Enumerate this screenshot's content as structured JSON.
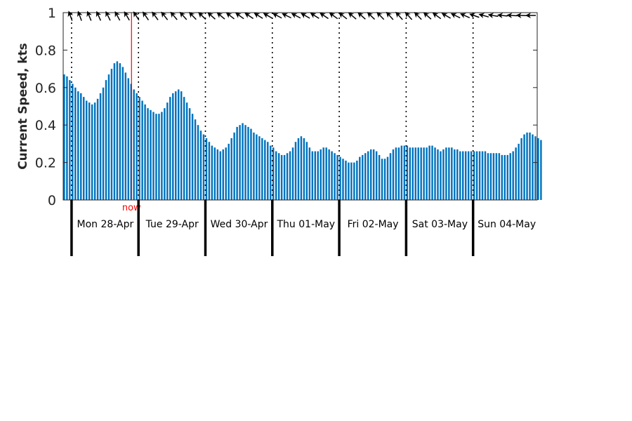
{
  "chart_data": {
    "type": "bar",
    "ylabel": "Current Speed, kts",
    "ylim": [
      0,
      1
    ],
    "yticks": [
      0,
      0.2,
      0.4,
      0.6,
      0.8,
      1
    ],
    "ytick_labels": [
      "0",
      "0.2",
      "0.4",
      "0.6",
      "0.8",
      "1"
    ],
    "x_unit": "hours since 2025-04-28 00:00",
    "xlim": [
      -3,
      167
    ],
    "day_ticks": [
      0,
      24,
      48,
      72,
      96,
      120,
      144
    ],
    "day_labels": [
      "Mon 28-Apr",
      "Tue 29-Apr",
      "Wed 30-Apr",
      "Thu 01-May",
      "Fri 02-May",
      "Sat 03-May",
      "Sun 04-May"
    ],
    "now_hour": 21.5,
    "now_label": "now",
    "bar_color": "#0072bd",
    "now_color": "#ff0000",
    "speed_kts": [
      0.67,
      0.66,
      0.64,
      0.62,
      0.6,
      0.58,
      0.57,
      0.55,
      0.53,
      0.52,
      0.51,
      0.52,
      0.54,
      0.57,
      0.6,
      0.64,
      0.67,
      0.7,
      0.73,
      0.74,
      0.73,
      0.71,
      0.68,
      0.65,
      0.62,
      0.59,
      0.57,
      0.55,
      0.53,
      0.51,
      0.49,
      0.48,
      0.47,
      0.46,
      0.46,
      0.47,
      0.49,
      0.52,
      0.55,
      0.57,
      0.58,
      0.59,
      0.58,
      0.55,
      0.52,
      0.49,
      0.46,
      0.43,
      0.4,
      0.37,
      0.35,
      0.33,
      0.31,
      0.29,
      0.28,
      0.27,
      0.26,
      0.27,
      0.28,
      0.3,
      0.33,
      0.36,
      0.39,
      0.4,
      0.41,
      0.4,
      0.39,
      0.38,
      0.36,
      0.35,
      0.34,
      0.33,
      0.32,
      0.31,
      0.29,
      0.28,
      0.26,
      0.25,
      0.24,
      0.24,
      0.25,
      0.26,
      0.28,
      0.31,
      0.33,
      0.34,
      0.33,
      0.31,
      0.28,
      0.26,
      0.26,
      0.26,
      0.27,
      0.28,
      0.28,
      0.27,
      0.26,
      0.25,
      0.24,
      0.23,
      0.22,
      0.21,
      0.2,
      0.2,
      0.2,
      0.21,
      0.23,
      0.24,
      0.25,
      0.26,
      0.27,
      0.27,
      0.26,
      0.24,
      0.22,
      0.22,
      0.23,
      0.25,
      0.27,
      0.28,
      0.28,
      0.29,
      0.29,
      0.29,
      0.28,
      0.28,
      0.28,
      0.28,
      0.28,
      0.28,
      0.28,
      0.29,
      0.29,
      0.28,
      0.27,
      0.26,
      0.27,
      0.28,
      0.28,
      0.28,
      0.27,
      0.27,
      0.26,
      0.26,
      0.26,
      0.26,
      0.26,
      0.26,
      0.26,
      0.26,
      0.26,
      0.26,
      0.25,
      0.25,
      0.25,
      0.25,
      0.25,
      0.24,
      0.24,
      0.24,
      0.25,
      0.26,
      0.28,
      0.3,
      0.33,
      0.35,
      0.36,
      0.36,
      0.35,
      0.34,
      0.33,
      0.32
    ],
    "direction_deg": [
      340,
      340,
      338,
      336,
      334,
      332,
      330,
      328,
      326,
      324,
      322,
      320,
      318,
      316,
      314,
      312,
      310,
      308,
      306,
      304,
      302,
      300,
      298,
      296,
      298,
      300,
      302,
      304,
      306,
      308,
      310,
      312,
      314,
      316,
      318,
      318,
      318,
      316,
      312,
      306,
      300,
      296,
      294,
      290,
      286,
      280,
      276,
      274,
      272,
      270
    ],
    "direction_note": "current direction arrows shown every 3.4 hours across top of plot"
  }
}
